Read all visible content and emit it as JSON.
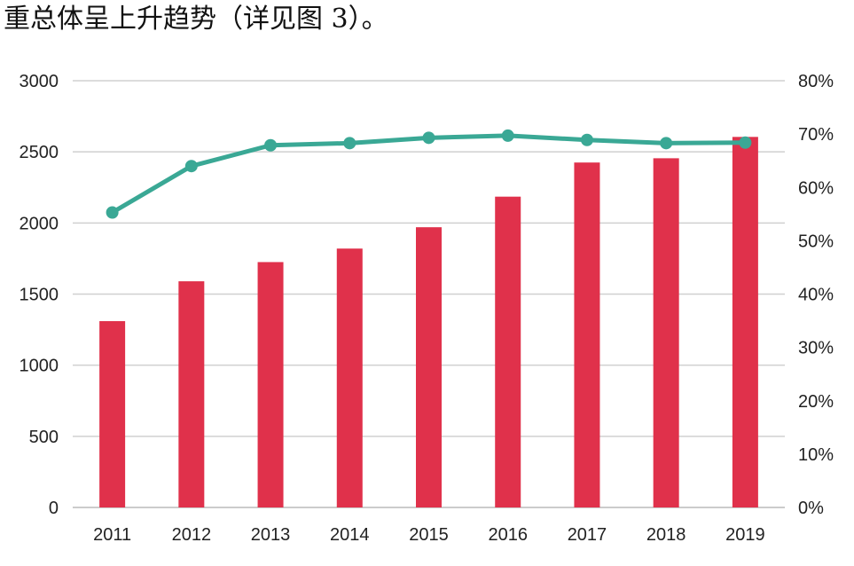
{
  "caption": "重总体呈上升趋势（详见图 3）。",
  "colors": {
    "bar": "#e0314b",
    "line": "#3aa895",
    "grid": "#d0d0d0",
    "axis": "#bbbbbb"
  },
  "chart_data": {
    "type": "bar",
    "categories": [
      "2011",
      "2012",
      "2013",
      "2014",
      "2015",
      "2016",
      "2017",
      "2018",
      "2019"
    ],
    "series": [
      {
        "type": "bar",
        "axis": "left",
        "values": [
          1310,
          1590,
          1725,
          1820,
          1970,
          2185,
          2425,
          2455,
          2605
        ]
      },
      {
        "type": "line",
        "axis": "right",
        "values": [
          55.3,
          64.0,
          67.9,
          68.3,
          69.3,
          69.7,
          68.9,
          68.3,
          68.4
        ]
      }
    ],
    "ylim": [
      0,
      3000
    ],
    "yticks": [
      0,
      500,
      1000,
      1500,
      2000,
      2500,
      3000
    ],
    "y2lim": [
      0,
      80
    ],
    "y2ticks": [
      "0%",
      "10%",
      "20%",
      "30%",
      "40%",
      "50%",
      "60%",
      "70%",
      "80%"
    ],
    "grid": true,
    "legend": "none"
  }
}
